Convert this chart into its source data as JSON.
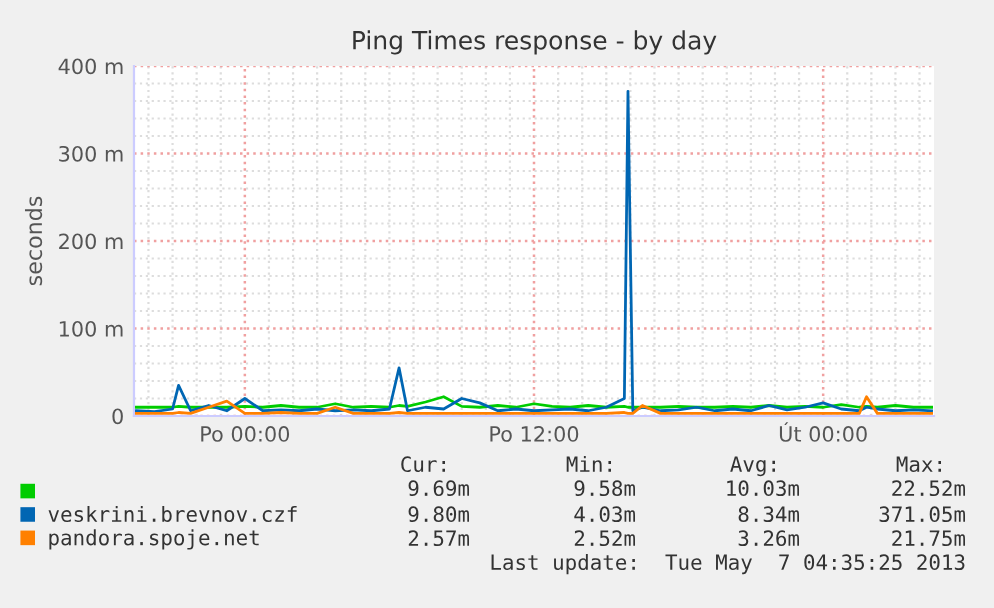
{
  "chart_data": {
    "type": "line",
    "title": "Ping Times response - by day",
    "ylabel": "seconds",
    "x": [
      "2013-05-05T19:30",
      "2013-05-05T20:15",
      "2013-05-05T21:00",
      "2013-05-05T21:15",
      "2013-05-05T21:45",
      "2013-05-05T22:30",
      "2013-05-05T23:15",
      "2013-05-06T00:00",
      "2013-05-06T00:45",
      "2013-05-06T01:30",
      "2013-05-06T02:15",
      "2013-05-06T03:00",
      "2013-05-06T03:45",
      "2013-05-06T04:30",
      "2013-05-06T05:15",
      "2013-05-06T06:00",
      "2013-05-06T06:24",
      "2013-05-06T06:45",
      "2013-05-06T07:30",
      "2013-05-06T08:15",
      "2013-05-06T09:00",
      "2013-05-06T09:45",
      "2013-05-06T10:30",
      "2013-05-06T11:15",
      "2013-05-06T12:00",
      "2013-05-06T12:45",
      "2013-05-06T13:30",
      "2013-05-06T14:15",
      "2013-05-06T15:00",
      "2013-05-06T15:45",
      "2013-05-06T15:54",
      "2013-05-06T16:06",
      "2013-05-06T16:30",
      "2013-05-06T17:15",
      "2013-05-06T18:00",
      "2013-05-06T18:45",
      "2013-05-06T19:30",
      "2013-05-06T20:15",
      "2013-05-06T21:00",
      "2013-05-06T21:45",
      "2013-05-06T22:30",
      "2013-05-06T23:15",
      "2013-05-07T00:00",
      "2013-05-07T00:45",
      "2013-05-07T01:30",
      "2013-05-07T01:48",
      "2013-05-07T02:15",
      "2013-05-07T03:00",
      "2013-05-07T03:45",
      "2013-05-07T04:30"
    ],
    "series": [
      {
        "color": "#00cc00",
        "values": [
          10,
          10,
          10,
          11,
          10,
          10,
          10,
          11,
          10,
          12,
          10,
          10,
          14,
          10,
          11,
          10,
          12,
          11,
          16,
          22,
          11,
          10,
          12,
          10,
          14,
          11,
          10,
          12,
          10,
          11,
          10,
          10,
          10,
          10,
          11,
          10,
          10,
          11,
          10,
          12,
          10,
          11,
          10,
          13,
          10,
          11,
          10,
          12,
          10,
          10
        ]
      },
      {
        "name": "veskrini.brevnov.czf",
        "color": "#0066b3",
        "values": [
          6,
          5,
          8,
          35,
          6,
          12,
          6,
          20,
          6,
          7,
          6,
          8,
          6,
          7,
          6,
          8,
          55,
          6,
          10,
          8,
          20,
          15,
          6,
          8,
          6,
          7,
          8,
          6,
          10,
          20,
          371,
          6,
          10,
          6,
          7,
          10,
          6,
          8,
          6,
          12,
          7,
          10,
          15,
          8,
          6,
          10,
          8,
          6,
          7,
          6
        ]
      },
      {
        "name": "pandora.spoje.net",
        "color": "#ff8000",
        "values": [
          3,
          3,
          3,
          4,
          3,
          10,
          17,
          3,
          3,
          4,
          3,
          3,
          10,
          3,
          3,
          3,
          4,
          3,
          3,
          3,
          3,
          3,
          3,
          3,
          3,
          3,
          3,
          3,
          3,
          4,
          3,
          3,
          12,
          3,
          3,
          3,
          3,
          3,
          3,
          3,
          3,
          3,
          3,
          3,
          3,
          22,
          3,
          3,
          3,
          3
        ]
      }
    ],
    "xlim": [
      "2013-05-05T19:24",
      "2013-05-07T04:36"
    ],
    "xticks": [
      {
        "value": "2013-05-06T00:00",
        "label": "Po 00:00"
      },
      {
        "value": "2013-05-06T12:00",
        "label": "Po 12:00"
      },
      {
        "value": "2013-05-07T00:00",
        "label": "Út 00:00"
      }
    ],
    "ylim": [
      0,
      400
    ],
    "yticks": [
      0,
      {
        "value": 100,
        "label": "100 m"
      },
      {
        "value": 200,
        "label": "200 m"
      },
      {
        "value": 300,
        "label": "300 m"
      },
      {
        "value": 400,
        "label": "400 m"
      }
    ],
    "grid": true,
    "legend": "bottom",
    "marker": "none",
    "line_style": "solid",
    "annotations": [
      "Cur:",
      "Min:",
      "Avg:",
      "Max:",
      "9.69m",
      "9.58m",
      "10.03m",
      "22.52m",
      "9.80m",
      "4.03m",
      "8.34m",
      "371.05m",
      "2.57m",
      "2.52m",
      "3.26m",
      "21.75m",
      "Last update:  Tue May  7 04:35:25 2013"
    ]
  }
}
